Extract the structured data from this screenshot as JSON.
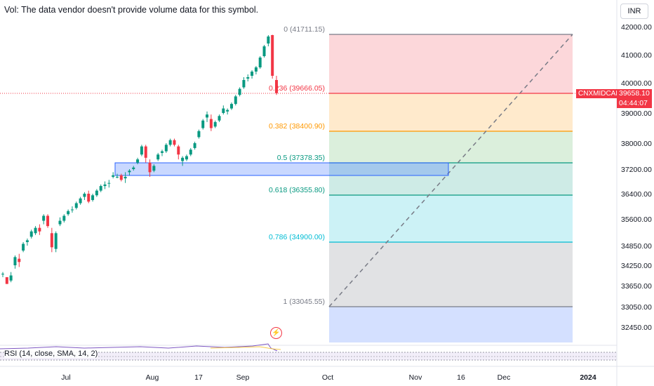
{
  "header": {
    "volume_note": "Vol: The data vendor doesn't provide volume data for this symbol."
  },
  "currency": "INR",
  "symbol": {
    "name": "CNXMIDCAP",
    "last_price": "39658.10",
    "countdown": "04:44:07"
  },
  "price_axis": [
    "42000.00",
    "41000.00",
    "40000.00",
    "39000.00",
    "38000.00",
    "37200.00",
    "36400.00",
    "35600.00",
    "34850.00",
    "34250.00",
    "33650.00",
    "33050.00",
    "32450.00"
  ],
  "time_axis": [
    "Jul",
    "Aug",
    "17",
    "Sep",
    "Oct",
    "Nov",
    "16",
    "Dec",
    "2024"
  ],
  "fibonacci": [
    {
      "label": "0 (41711.15)",
      "color": "#787b86",
      "fill": "rgba(242,54,69,0.20)"
    },
    {
      "label": "0.236 (39666.05)",
      "color": "#f23645",
      "fill": "rgba(255,152,0,0.20)"
    },
    {
      "label": "0.382 (38400.90)",
      "color": "#ff9800",
      "fill": "rgba(76,175,80,0.20)"
    },
    {
      "label": "0.5 (37378.35)",
      "color": "#089981",
      "fill": "rgba(8,153,129,0.20)"
    },
    {
      "label": "0.618 (36355.80)",
      "color": "#089981",
      "fill": "rgba(0,188,212,0.20)"
    },
    {
      "label": "0.786 (34900.00)",
      "color": "#00bcd4",
      "fill": "rgba(120,123,134,0.22)"
    },
    {
      "label": "1 (33045.55)",
      "color": "#787b86",
      "fill": "rgba(41,98,255,0.20)"
    }
  ],
  "candles": [
    {
      "o": 34000,
      "h": 34050,
      "l": 33900,
      "c": 34000
    },
    {
      "o": 33900,
      "h": 33900,
      "l": 33700,
      "c": 33700
    },
    {
      "o": 33800,
      "h": 34050,
      "l": 33750,
      "c": 33950
    },
    {
      "o": 34250,
      "h": 34550,
      "l": 34150,
      "c": 34500
    },
    {
      "o": 34450,
      "h": 34600,
      "l": 34200,
      "c": 34350
    },
    {
      "o": 34700,
      "h": 34950,
      "l": 34650,
      "c": 34900
    },
    {
      "o": 34950,
      "h": 35050,
      "l": 34850,
      "c": 35000
    },
    {
      "o": 35100,
      "h": 35300,
      "l": 35050,
      "c": 35250
    },
    {
      "o": 35200,
      "h": 35400,
      "l": 35150,
      "c": 35350
    },
    {
      "o": 35350,
      "h": 35450,
      "l": 35150,
      "c": 35250
    },
    {
      "o": 35550,
      "h": 35750,
      "l": 35450,
      "c": 35700
    },
    {
      "o": 35700,
      "h": 35750,
      "l": 35350,
      "c": 35400
    },
    {
      "o": 35200,
      "h": 35350,
      "l": 34650,
      "c": 34800
    },
    {
      "o": 34750,
      "h": 35250,
      "l": 34650,
      "c": 35200
    },
    {
      "o": 35450,
      "h": 35650,
      "l": 35400,
      "c": 35550
    },
    {
      "o": 35550,
      "h": 35750,
      "l": 35500,
      "c": 35700
    },
    {
      "o": 35750,
      "h": 35900,
      "l": 35700,
      "c": 35850
    },
    {
      "o": 35900,
      "h": 36000,
      "l": 35800,
      "c": 35900
    },
    {
      "o": 35950,
      "h": 36150,
      "l": 35900,
      "c": 36100
    },
    {
      "o": 36100,
      "h": 36300,
      "l": 36050,
      "c": 36250
    },
    {
      "o": 36300,
      "h": 36450,
      "l": 36200,
      "c": 36400
    },
    {
      "o": 36400,
      "h": 36500,
      "l": 36100,
      "c": 36150
    },
    {
      "o": 36200,
      "h": 36400,
      "l": 36150,
      "c": 36350
    },
    {
      "o": 36350,
      "h": 36550,
      "l": 36300,
      "c": 36500
    },
    {
      "o": 36500,
      "h": 36700,
      "l": 36450,
      "c": 36650
    },
    {
      "o": 36650,
      "h": 36800,
      "l": 36550,
      "c": 36700
    },
    {
      "o": 36750,
      "h": 36850,
      "l": 36600,
      "c": 36750
    },
    {
      "o": 36950,
      "h": 37100,
      "l": 36900,
      "c": 37000
    },
    {
      "o": 36950,
      "h": 37050,
      "l": 36900,
      "c": 36950
    },
    {
      "o": 37000,
      "h": 37050,
      "l": 36800,
      "c": 36850
    },
    {
      "o": 36900,
      "h": 37100,
      "l": 36750,
      "c": 36950
    },
    {
      "o": 37100,
      "h": 37200,
      "l": 37000,
      "c": 37150
    },
    {
      "o": 37200,
      "h": 37300,
      "l": 37150,
      "c": 37250
    },
    {
      "o": 37400,
      "h": 37550,
      "l": 37350,
      "c": 37500
    },
    {
      "o": 37650,
      "h": 37950,
      "l": 37600,
      "c": 37900
    },
    {
      "o": 37900,
      "h": 37950,
      "l": 37400,
      "c": 37550
    },
    {
      "o": 37400,
      "h": 37500,
      "l": 36950,
      "c": 37100
    },
    {
      "o": 37150,
      "h": 37350,
      "l": 37100,
      "c": 37300
    },
    {
      "o": 37500,
      "h": 37700,
      "l": 37450,
      "c": 37650
    },
    {
      "o": 37700,
      "h": 37800,
      "l": 37600,
      "c": 37750
    },
    {
      "o": 37750,
      "h": 38000,
      "l": 37700,
      "c": 37950
    },
    {
      "o": 37950,
      "h": 38150,
      "l": 37900,
      "c": 38100
    },
    {
      "o": 38100,
      "h": 38150,
      "l": 37900,
      "c": 37950
    },
    {
      "o": 37900,
      "h": 37950,
      "l": 37500,
      "c": 37650
    },
    {
      "o": 37450,
      "h": 37600,
      "l": 37300,
      "c": 37550
    },
    {
      "o": 37500,
      "h": 37650,
      "l": 37450,
      "c": 37600
    },
    {
      "o": 37650,
      "h": 37850,
      "l": 37600,
      "c": 37800
    },
    {
      "o": 37850,
      "h": 38050,
      "l": 37800,
      "c": 38000
    },
    {
      "o": 38200,
      "h": 38450,
      "l": 38150,
      "c": 38400
    },
    {
      "o": 38500,
      "h": 38800,
      "l": 38450,
      "c": 38750
    },
    {
      "o": 38850,
      "h": 39050,
      "l": 38700,
      "c": 38950
    },
    {
      "o": 38800,
      "h": 38950,
      "l": 38400,
      "c": 38500
    },
    {
      "o": 38550,
      "h": 38750,
      "l": 38500,
      "c": 38700
    },
    {
      "o": 38750,
      "h": 38950,
      "l": 38700,
      "c": 38900
    },
    {
      "o": 39000,
      "h": 39250,
      "l": 38950,
      "c": 39150
    },
    {
      "o": 39050,
      "h": 39150,
      "l": 38950,
      "c": 39100
    },
    {
      "o": 39150,
      "h": 39350,
      "l": 39100,
      "c": 39300
    },
    {
      "o": 39300,
      "h": 39600,
      "l": 39250,
      "c": 39550
    },
    {
      "o": 39600,
      "h": 39850,
      "l": 39550,
      "c": 39800
    },
    {
      "o": 39850,
      "h": 40200,
      "l": 39800,
      "c": 40100
    },
    {
      "o": 40150,
      "h": 40300,
      "l": 40050,
      "c": 40200
    },
    {
      "o": 40250,
      "h": 40450,
      "l": 40150,
      "c": 40400
    },
    {
      "o": 40400,
      "h": 40600,
      "l": 40300,
      "c": 40550
    },
    {
      "o": 40550,
      "h": 40950,
      "l": 40500,
      "c": 40900
    },
    {
      "o": 40950,
      "h": 41350,
      "l": 40900,
      "c": 41300
    },
    {
      "o": 41400,
      "h": 41700,
      "l": 41300,
      "c": 41650
    },
    {
      "o": 41700,
      "h": 41711,
      "l": 40150,
      "c": 40250
    },
    {
      "o": 40100,
      "h": 40250,
      "l": 39600,
      "c": 39658
    }
  ],
  "rsi": {
    "label": "RSI (14, close, SMA, 14, 2)"
  }
}
